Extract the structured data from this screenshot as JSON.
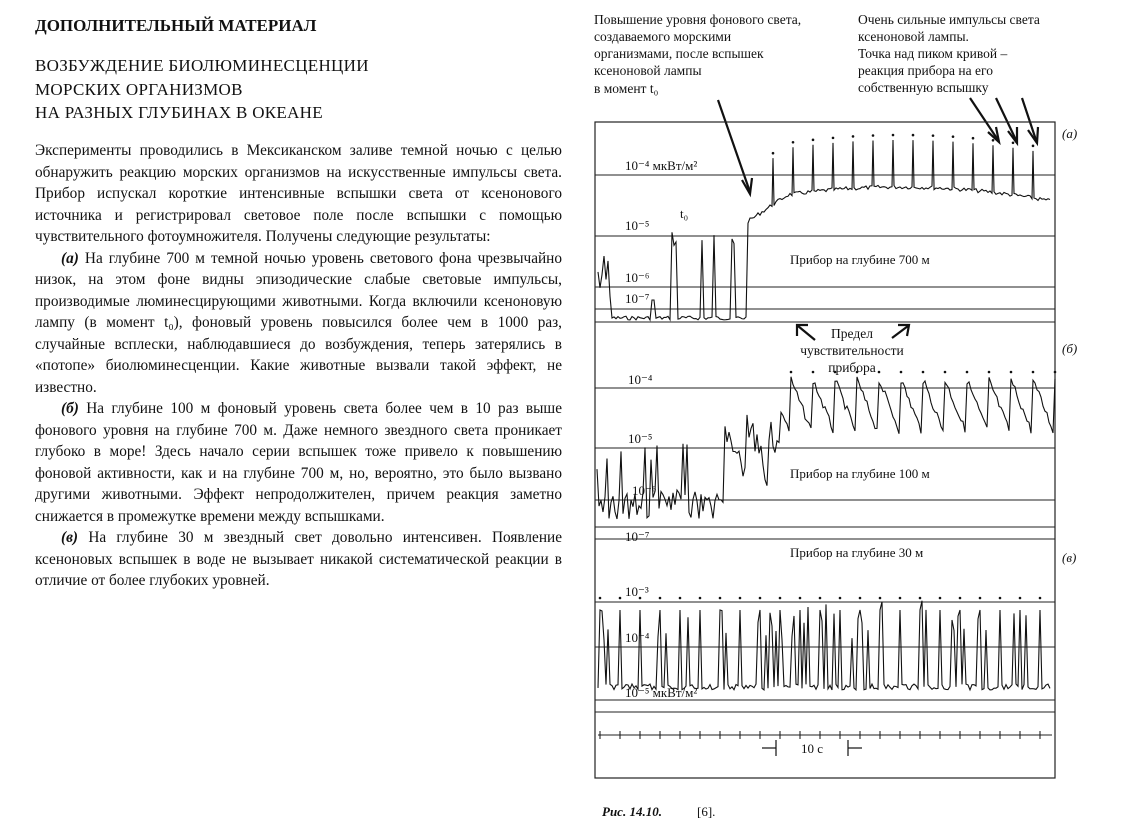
{
  "header": {
    "section": "ДОПОЛНИТЕЛЬНЫЙ МАТЕРИАЛ",
    "title": [
      "ВОЗБУЖДЕНИЕ БИОЛЮМИНЕСЦЕНЦИИ",
      "МОРСКИХ ОРГАНИЗМОВ",
      "НА РАЗНЫХ ГЛУБИНАХ В ОКЕАНЕ"
    ]
  },
  "body": {
    "paragraphs": [
      {
        "text": "Эксперименты проводились в Мексиканском заливе темной ночью с целью обнаружить реакцию морских организмов на искусственные импульсы света. Прибор испускал короткие интенсивные вспышки света от ксенонового источника и регистрировал световое поле после вспышки с помощью чувствительного фотоумножителя. Получены следующие результаты:"
      },
      {
        "label": "(а)",
        "text": "На глубине 700 м темной ночью уровень светового фона чрезвычайно низок, на этом фоне видны эпизодические слабые световые импульсы, производимые люминесцирующими животными. Когда включили ксеноновую лампу (в момент t₀), фоновый уровень повысился более чем в 1000 раз, случайные всплески, наблюдавшиеся до возбуждения, теперь затерялись в «потопе» биолюминесценции. Какие животные вызвали такой эффект, не известно."
      },
      {
        "label": "(б)",
        "text": "На глубине 100 м фоновый уровень света более чем в 10 раз выше фонового уровня на глубине 700 м. Даже немного звездного света проникает глубоко в море! Здесь начало серии вспышек тоже привело к повышению фоновой активности, как и на глубине 700 м, но, вероятно, это было вызвано другими животными. Эффект непродолжителен, причем реакция заметно снижается в промежутке времени между вспышками."
      },
      {
        "label": "(в)",
        "text": "На глубине 30 м звездный свет довольно интенсивен. Появление ксеноновых вспышек в воде не вызывает никакой систематической реакции в отличие от более глубоких уровней."
      }
    ]
  },
  "figure": {
    "annotations": {
      "left": [
        "Повышение уровня фонового света,",
        "создаваемого морскими",
        "организмами, после вспышек",
        "ксеноновой лампы",
        "в момент t₀"
      ],
      "right": [
        "Очень сильные импульсы света",
        "ксеноновой лампы.",
        "Точка над пиком кривой –",
        "реакция прибора на его",
        "собственную вспышку"
      ]
    },
    "panels": [
      {
        "label": "(а)",
        "depth": "Прибор на глубине 700 м",
        "levels": [
          "10⁻⁴ мкВт/м²",
          "10⁻⁵",
          "10⁻⁶",
          "10⁻⁷"
        ],
        "marker": "t₀"
      },
      {
        "label": "(б)",
        "depth": "Прибор на глубине 100 м",
        "levels": [
          "10⁻⁴",
          "10⁻⁵",
          "10⁻⁶",
          "10⁻⁷"
        ]
      },
      {
        "label": "(в)",
        "depth": "Прибор на глубине 30 м",
        "levels": [
          "10⁻³",
          "10⁻⁴",
          "10⁻⁵ мкВт/м²"
        ]
      }
    ],
    "limit_note": [
      "Предел",
      "чувствительности",
      "прибора"
    ],
    "time_scale": "10 с",
    "caption": {
      "number": "Рис. 14.10.",
      "ref": "[6]."
    }
  }
}
